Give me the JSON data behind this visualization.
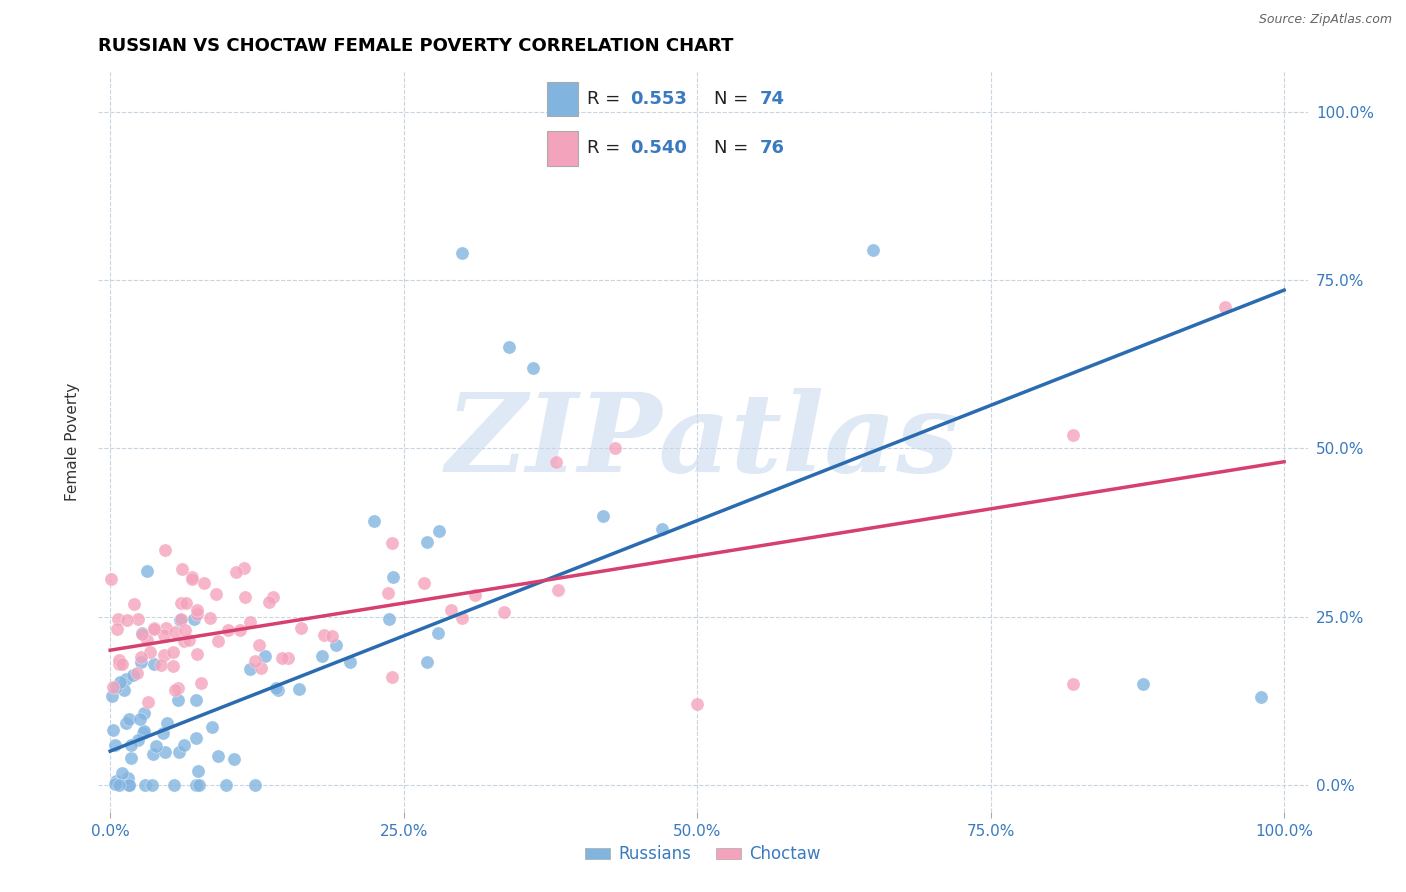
{
  "title": "RUSSIAN VS CHOCTAW FEMALE POVERTY CORRELATION CHART",
  "source": "Source: ZipAtlas.com",
  "ylabel": "Female Poverty",
  "xlabel": "",
  "xlim": [
    0,
    1.0
  ],
  "ylim": [
    0.0,
    1.0
  ],
  "xticks": [
    0.0,
    0.25,
    0.5,
    0.75,
    1.0
  ],
  "yticks": [
    0.0,
    0.25,
    0.5,
    0.75,
    1.0
  ],
  "xticklabels": [
    "0.0%",
    "25.0%",
    "50.0%",
    "75.0%",
    "100.0%"
  ],
  "right_yticklabels": [
    "0.0%",
    "25.0%",
    "50.0%",
    "75.0%",
    "100.0%"
  ],
  "russian_color": "#82b4e0",
  "choctaw_color": "#f4a3bc",
  "russian_line_color": "#2b6cb0",
  "choctaw_line_color": "#d6406e",
  "R_russian": 0.553,
  "N_russian": 74,
  "R_choctaw": 0.54,
  "N_choctaw": 76,
  "legend_label_russian": "Russians",
  "legend_label_choctaw": "Choctaw",
  "watermark": "ZIPatlas",
  "background_color": "#ffffff",
  "grid_color": "#c8d4e0",
  "title_fontsize": 13,
  "tick_fontsize": 11,
  "russian_line_x0": 0.0,
  "russian_line_y0": 0.05,
  "russian_line_x1": 1.0,
  "russian_line_y1": 0.735,
  "choctaw_line_x0": 0.0,
  "choctaw_line_y0": 0.2,
  "choctaw_line_x1": 1.0,
  "choctaw_line_y1": 0.48
}
